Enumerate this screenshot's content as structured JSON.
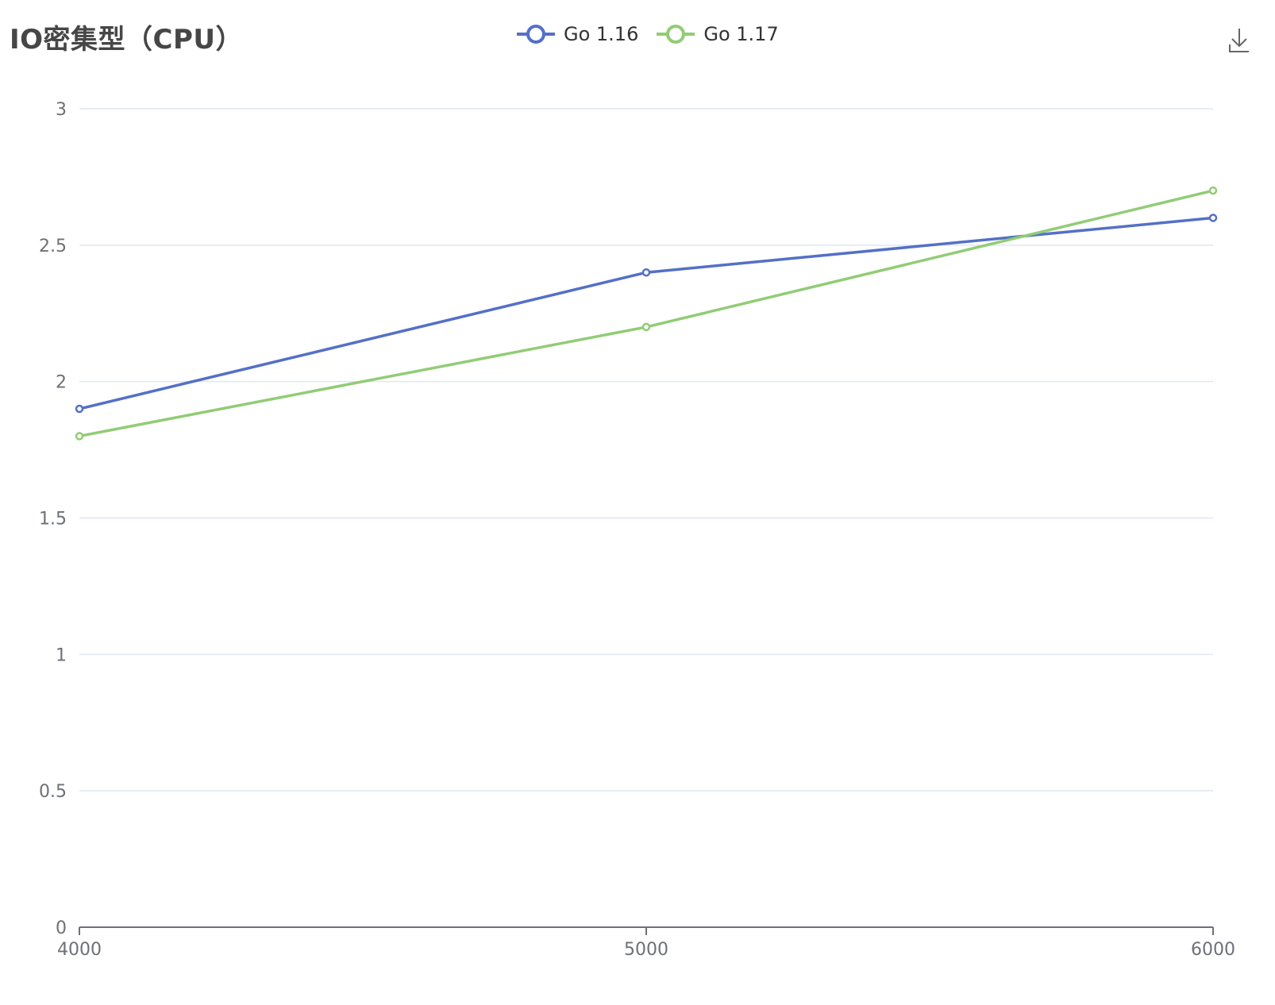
{
  "chart_data": {
    "type": "line",
    "title": "IO密集型（CPU）",
    "x": [
      4000,
      5000,
      6000
    ],
    "x_tick_labels": [
      "4000",
      "5000",
      "6000"
    ],
    "y_tick_labels": [
      "0",
      "0.5",
      "1",
      "1.5",
      "2",
      "2.5",
      "3"
    ],
    "ylim": [
      0,
      3
    ],
    "grid": true,
    "legend_position": "top-center",
    "series": [
      {
        "name": "Go 1.16",
        "values": [
          1.9,
          2.4,
          2.6
        ],
        "color": "#5470c6"
      },
      {
        "name": "Go 1.17",
        "values": [
          1.8,
          2.2,
          2.7
        ],
        "color": "#91cc75"
      }
    ]
  },
  "toolbox": {
    "download_icon": "download-icon"
  }
}
